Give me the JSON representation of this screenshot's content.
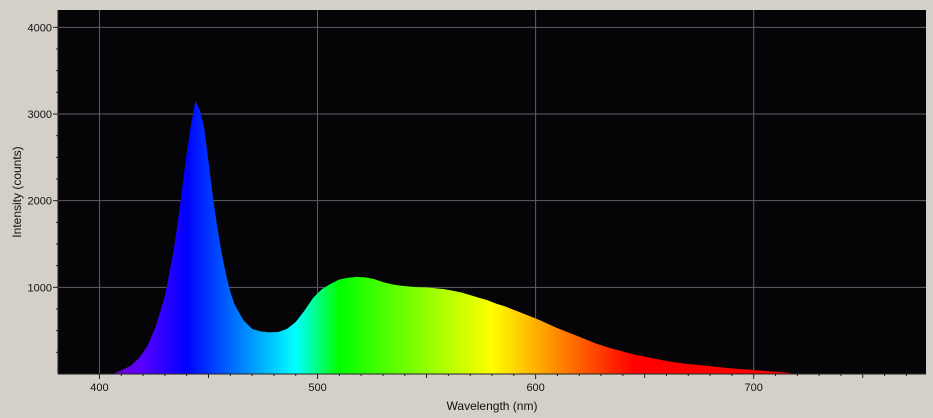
{
  "colors": {
    "window_bg": "#d4d0c8",
    "plot_bg": "#050508",
    "grid": "#5f5f66"
  },
  "chart_data": {
    "type": "area",
    "title": "",
    "xlabel": "Wavelength (nm)",
    "ylabel": "Intensity (counts)",
    "xlim": [
      381,
      779
    ],
    "ylim": [
      0,
      4200
    ],
    "x_ticks": [
      400,
      500,
      600,
      700
    ],
    "y_ticks": [
      1000,
      2000,
      3000,
      4000
    ],
    "x_tick_labels": [
      "400",
      "500",
      "600",
      "700"
    ],
    "y_tick_labels": [
      "1000",
      "2000",
      "3000",
      "4000"
    ],
    "grid": true,
    "fill": "visible-spectrum gradient",
    "series": [
      {
        "x": [
          406,
          410,
          414,
          418,
          422,
          426,
          430,
          434,
          436,
          438,
          440,
          442,
          444,
          446,
          448,
          450,
          452,
          454,
          456,
          458,
          460,
          462,
          466,
          470,
          474,
          478,
          482,
          486,
          490,
          494,
          498,
          502,
          506,
          510,
          514,
          518,
          522,
          526,
          530,
          534,
          538,
          542,
          546,
          550,
          554,
          558,
          562,
          566,
          570,
          574,
          578,
          582,
          586,
          590,
          594,
          598,
          602,
          606,
          610,
          616,
          622,
          628,
          634,
          640,
          646,
          652,
          660,
          668,
          676,
          684,
          692,
          700,
          708,
          716,
          718
        ],
        "y": [
          0,
          40,
          90,
          180,
          320,
          560,
          900,
          1420,
          1760,
          2150,
          2550,
          2880,
          3150,
          3050,
          2850,
          2450,
          2050,
          1700,
          1400,
          1150,
          950,
          800,
          620,
          520,
          490,
          480,
          485,
          520,
          600,
          730,
          880,
          980,
          1040,
          1090,
          1110,
          1120,
          1115,
          1095,
          1060,
          1035,
          1020,
          1010,
          1000,
          998,
          990,
          980,
          960,
          940,
          910,
          880,
          850,
          810,
          780,
          740,
          700,
          660,
          620,
          575,
          530,
          470,
          410,
          350,
          300,
          260,
          220,
          190,
          150,
          120,
          100,
          80,
          60,
          45,
          30,
          15,
          0
        ]
      }
    ]
  }
}
